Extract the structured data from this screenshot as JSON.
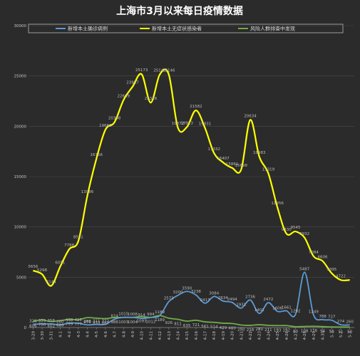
{
  "chart_data": {
    "type": "line",
    "title": "上海市3月以来每日疫情数据",
    "ylim": [
      0,
      30000
    ],
    "yticks": [
      0,
      5000,
      10000,
      15000,
      20000,
      25000,
      30000
    ],
    "grid": true,
    "legend_placement": "top",
    "x": [
      "3-29",
      "3-30",
      "3-31",
      "4-1",
      "4-2",
      "4-3",
      "4-4",
      "4-5",
      "4-6",
      "4-7",
      "4-8",
      "4-9",
      "4-10",
      "4-11",
      "4-12",
      "4-13",
      "4-14",
      "4-15",
      "4-16",
      "4-17",
      "4-18",
      "4-19",
      "4-20",
      "4-21",
      "4-22",
      "4-23",
      "4-24",
      "4-25",
      "4-26",
      "4-27",
      "4-28",
      "4-29",
      "4-30",
      "5-1",
      "5-2",
      "5-3"
    ],
    "series": [
      {
        "name": "新增本土确诊病例",
        "color": "#5b9bd5",
        "values": [
          326,
          355,
          358,
          260,
          438,
          425,
          268,
          311,
          322,
          824,
          1015,
          1006,
          914,
          994,
          1189,
          2573,
          3200,
          3590,
          3238,
          2417,
          3084,
          2634,
          2494,
          1931,
          2736,
          1401,
          2472,
          1606,
          1661,
          1292,
          5487,
          1249,
          788,
          727,
          274,
          260
        ]
      },
      {
        "name": "新增本土无症状感染者",
        "color": "#ffff00",
        "values": [
          5656,
          5298,
          4144,
          6051,
          7788,
          8581,
          13086,
          16766,
          19660,
          20398,
          22609,
          23937,
          25173,
          22348,
          25141,
          25146,
          19872,
          19923,
          21582,
          19831,
          17332,
          16407,
          15861,
          15698,
          20634,
          16983,
          15319,
          11956,
          9330,
          9545,
          8932,
          7084,
          6606,
          5395,
          4722,
          4722
        ]
      },
      {
        "name": "风险人群排查中发现",
        "color": "#70ad47",
        "values": [
          606,
          750,
          602,
          689,
          799,
          777,
          979,
          933,
          887,
          988,
          1003,
          1004,
          1093,
          1012,
          1189,
          926,
          811,
          635,
          721,
          561,
          514,
          429,
          400,
          250,
          218,
          280,
          211,
          193,
          192,
          80,
          108,
          126,
          94,
          56,
          51,
          50
        ]
      }
    ],
    "data_labels": {
      "confirmed": [
        "326",
        "355",
        "358",
        "260",
        "438",
        "425",
        "268",
        "311",
        "322",
        "824",
        "1015",
        "1006",
        "914",
        "994",
        "1189",
        "2573",
        "3200",
        "3590",
        "3238",
        "2417",
        "3084",
        "2634",
        "2494",
        "1931",
        "2736",
        "1401",
        "2472",
        "1606",
        "1661",
        "1292",
        "5487",
        "1249",
        "788",
        "727",
        "274",
        "260"
      ],
      "asymptomatic": [
        "5656",
        "5298",
        "4144",
        "6051",
        "7788",
        "8581",
        "13086",
        "16766",
        "19660",
        "20398",
        "22609",
        "23937",
        "25173",
        "22348",
        "25141",
        "25146",
        "19872",
        "19923",
        "21582",
        "19831",
        "17332",
        "16407",
        "15861",
        "15698",
        "20634",
        "16983",
        "15319",
        "11956",
        "9330",
        "9545",
        "8932",
        "7084",
        "6606",
        "5395",
        "4722",
        ""
      ],
      "risk_group": [
        "606",
        "750",
        "602",
        "689",
        "799",
        "777",
        "979",
        "933",
        "887",
        "988",
        "1003",
        "1004",
        "1093",
        "1012",
        "1189",
        "926",
        "811",
        "635",
        "721",
        "561",
        "514",
        "429",
        "400",
        "250",
        "218",
        "280",
        "211",
        "193",
        "192",
        "80",
        "108",
        "126",
        "94",
        "56",
        "51",
        "50"
      ]
    }
  }
}
